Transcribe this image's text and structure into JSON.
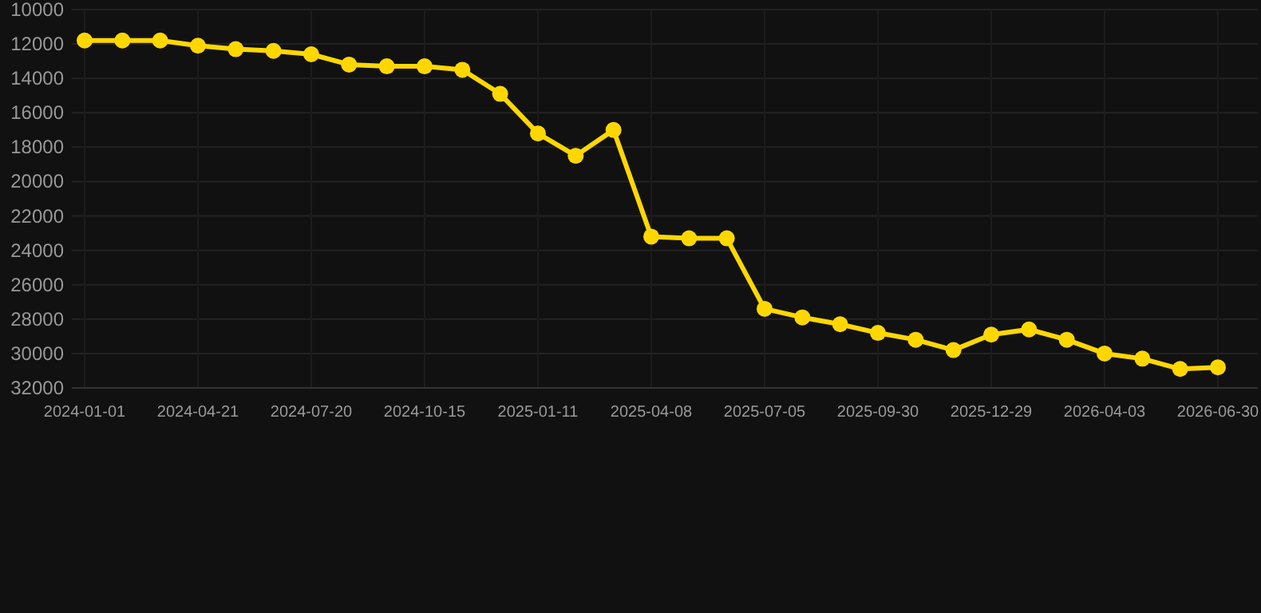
{
  "chart_data": {
    "type": "line",
    "categories": [
      "2024-01-01",
      null,
      null,
      "2024-04-21",
      null,
      null,
      "2024-07-20",
      null,
      null,
      "2024-10-15",
      null,
      null,
      "2025-01-11",
      null,
      null,
      "2025-04-08",
      null,
      null,
      "2025-07-05",
      null,
      null,
      "2025-09-30",
      null,
      null,
      "2025-12-29",
      null,
      null,
      "2026-04-03",
      null,
      null,
      "2026-06-30"
    ],
    "series": [
      {
        "color": "#ffd700",
        "values": [
          11800,
          11800,
          11800,
          12100,
          12300,
          12400,
          12600,
          13200,
          13300,
          13300,
          13500,
          14900,
          17200,
          18500,
          17000,
          23200,
          23300,
          23300,
          27400,
          27900,
          28300,
          28800,
          29200,
          29800,
          28900,
          28600,
          29200,
          30000,
          30300,
          30900,
          30800
        ]
      }
    ],
    "ylim": [
      32000,
      10000
    ],
    "yticks": [
      10000,
      12000,
      14000,
      16000,
      18000,
      20000,
      22000,
      24000,
      26000,
      28000,
      30000,
      32000
    ],
    "grid": true,
    "marker": "circle",
    "line_style": "solid"
  }
}
